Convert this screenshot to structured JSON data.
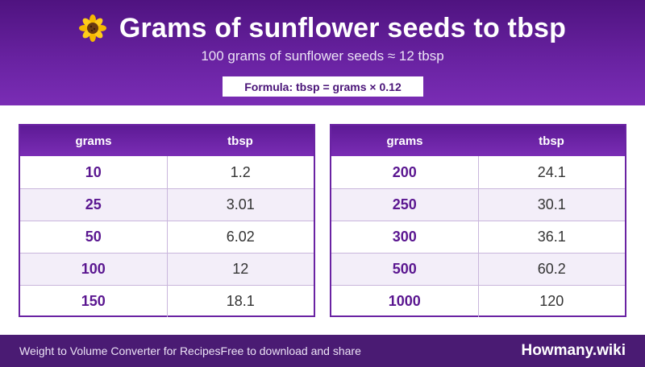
{
  "header": {
    "title": "Grams of sunflower seeds to tbsp",
    "subtitle": "100 grams of sunflower seeds ≈ 12 tbsp",
    "formula": "Formula: tbsp = grams × 0.12",
    "icon": "sunflower-icon"
  },
  "tables": [
    {
      "headers": [
        "grams",
        "tbsp"
      ],
      "rows": [
        [
          "10",
          "1.2"
        ],
        [
          "25",
          "3.01"
        ],
        [
          "50",
          "6.02"
        ],
        [
          "100",
          "12"
        ],
        [
          "150",
          "18.1"
        ]
      ]
    },
    {
      "headers": [
        "grams",
        "tbsp"
      ],
      "rows": [
        [
          "200",
          "24.1"
        ],
        [
          "250",
          "30.1"
        ],
        [
          "300",
          "36.1"
        ],
        [
          "500",
          "60.2"
        ],
        [
          "1000",
          "120"
        ]
      ]
    }
  ],
  "footer": {
    "left_text": "Weight to Volume Converter for RecipesFree to download and share",
    "brand": "Howmany.wiki"
  },
  "colors": {
    "header_purple": "#5d1a95",
    "footer_purple": "#4a1b73",
    "grams_text": "#5a1690",
    "alt_row": "#f3eef9"
  }
}
